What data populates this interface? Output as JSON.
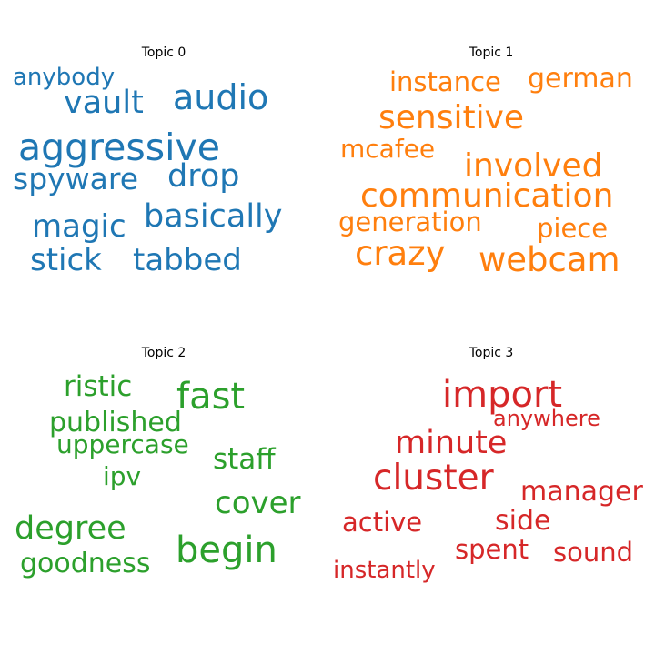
{
  "panels": [
    {
      "title": "Topic 0",
      "color": "#1f77b4",
      "words": [
        "anybody",
        "audio",
        "vault",
        "aggressive",
        "spyware",
        "drop",
        "basically",
        "magic",
        "stick",
        "tabbed"
      ]
    },
    {
      "title": "Topic 1",
      "color": "#ff7f0e",
      "words": [
        "instance",
        "german",
        "sensitive",
        "mcafee",
        "involved",
        "communication",
        "generation",
        "piece",
        "crazy",
        "webcam"
      ]
    },
    {
      "title": "Topic 2",
      "color": "#2ca02c",
      "words": [
        "ristic",
        "fast",
        "published",
        "uppercase",
        "staff",
        "ipv",
        "cover",
        "degree",
        "begin",
        "goodness"
      ]
    },
    {
      "title": "Topic 3",
      "color": "#d62728",
      "words": [
        "import",
        "anywhere",
        "minute",
        "cluster",
        "manager",
        "active",
        "side",
        "spent",
        "sound",
        "instantly"
      ]
    }
  ]
}
